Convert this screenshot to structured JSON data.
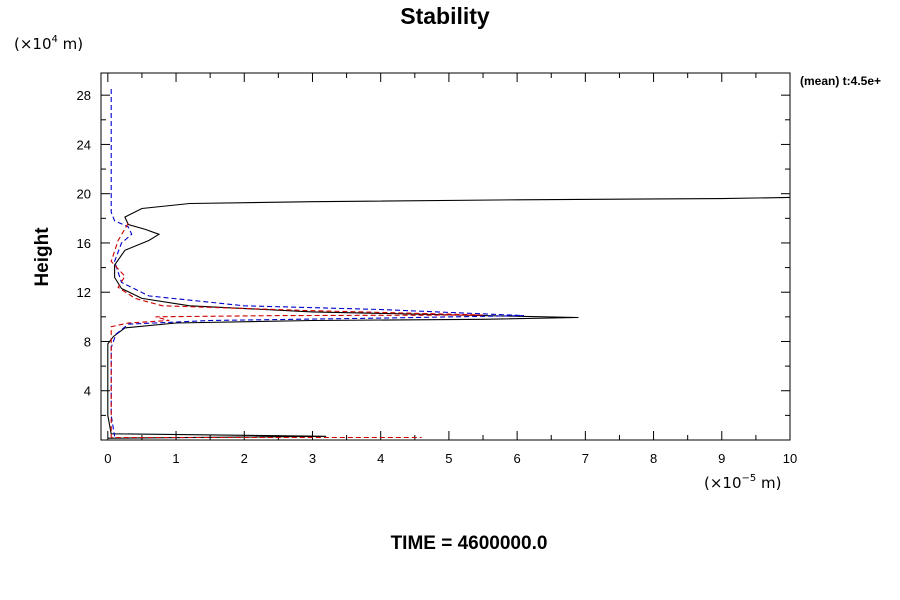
{
  "chart_data": {
    "type": "line",
    "title": "Stability",
    "ylabel": "Height",
    "y_unit": {
      "prefix": "(×10",
      "exp": "4",
      "suffix": " m)"
    },
    "x_unit": {
      "prefix": "(×10",
      "exp": "−5",
      "suffix": " m)"
    },
    "annotation": "(mean) t:4.5e+",
    "footer": "TIME = 4600000.0",
    "xlim": [
      -0.1,
      10
    ],
    "ylim": [
      0,
      29.8
    ],
    "x_ticks": [
      0,
      1,
      2,
      3,
      4,
      5,
      6,
      7,
      8,
      9,
      10
    ],
    "y_ticks": [
      4,
      8,
      12,
      16,
      20,
      24,
      28
    ],
    "grid": false,
    "series": [
      {
        "color": "#000000",
        "dash": "solid",
        "points": [
          [
            0.0,
            0.15
          ],
          [
            3.2,
            0.3
          ],
          [
            0.05,
            0.5
          ],
          [
            0.0,
            2
          ],
          [
            0.0,
            5
          ],
          [
            0.0,
            7.8
          ],
          [
            0.08,
            8.4
          ],
          [
            0.25,
            9.1
          ],
          [
            1.0,
            9.5
          ],
          [
            3.0,
            9.7
          ],
          [
            5.5,
            9.8
          ],
          [
            6.9,
            9.95
          ],
          [
            5.5,
            10.1
          ],
          [
            3.0,
            10.4
          ],
          [
            1.2,
            10.9
          ],
          [
            0.5,
            11.5
          ],
          [
            0.2,
            12.3
          ],
          [
            0.1,
            13.2
          ],
          [
            0.1,
            14.2
          ],
          [
            0.25,
            15.4
          ],
          [
            0.6,
            16.2
          ],
          [
            0.75,
            16.7
          ],
          [
            0.55,
            17.1
          ],
          [
            0.3,
            17.5
          ],
          [
            0.25,
            18.1
          ],
          [
            0.5,
            18.8
          ],
          [
            1.2,
            19.2
          ],
          [
            3.0,
            19.35
          ],
          [
            6.0,
            19.5
          ],
          [
            9.0,
            19.6
          ],
          [
            10.0,
            19.7
          ]
        ]
      },
      {
        "color": "#0000cc",
        "dash": "dashed",
        "points": [
          [
            0.05,
            28.5
          ],
          [
            0.05,
            24
          ],
          [
            0.05,
            18.5
          ],
          [
            0.1,
            17.8
          ],
          [
            0.3,
            17.3
          ],
          [
            0.35,
            16.7
          ],
          [
            0.2,
            16.0
          ],
          [
            0.1,
            14.5
          ],
          [
            0.2,
            12.8
          ],
          [
            0.6,
            11.7
          ],
          [
            2.0,
            10.9
          ],
          [
            4.0,
            10.6
          ],
          [
            6.1,
            10.1
          ],
          [
            4.0,
            9.9
          ],
          [
            1.5,
            9.7
          ],
          [
            0.3,
            9.4
          ],
          [
            0.12,
            8.6
          ],
          [
            0.05,
            7.5
          ],
          [
            0.05,
            2
          ],
          [
            0.1,
            0.3
          ]
        ]
      },
      {
        "color": "#cc0000",
        "dash": "dashed",
        "points": [
          [
            0.3,
            17.6
          ],
          [
            0.15,
            16.2
          ],
          [
            0.05,
            14.5
          ],
          [
            0.25,
            13.3
          ],
          [
            0.15,
            12.4
          ],
          [
            0.4,
            11.5
          ],
          [
            0.8,
            10.9
          ],
          [
            3.0,
            10.5
          ],
          [
            5.5,
            10.15
          ],
          [
            2.5,
            10.1
          ],
          [
            0.7,
            10.0
          ],
          [
            0.9,
            9.7
          ],
          [
            0.3,
            9.5
          ],
          [
            0.05,
            9.2
          ],
          [
            0.05,
            2
          ],
          [
            0.05,
            0.2
          ],
          [
            4.6,
            0.2
          ]
        ]
      }
    ]
  }
}
